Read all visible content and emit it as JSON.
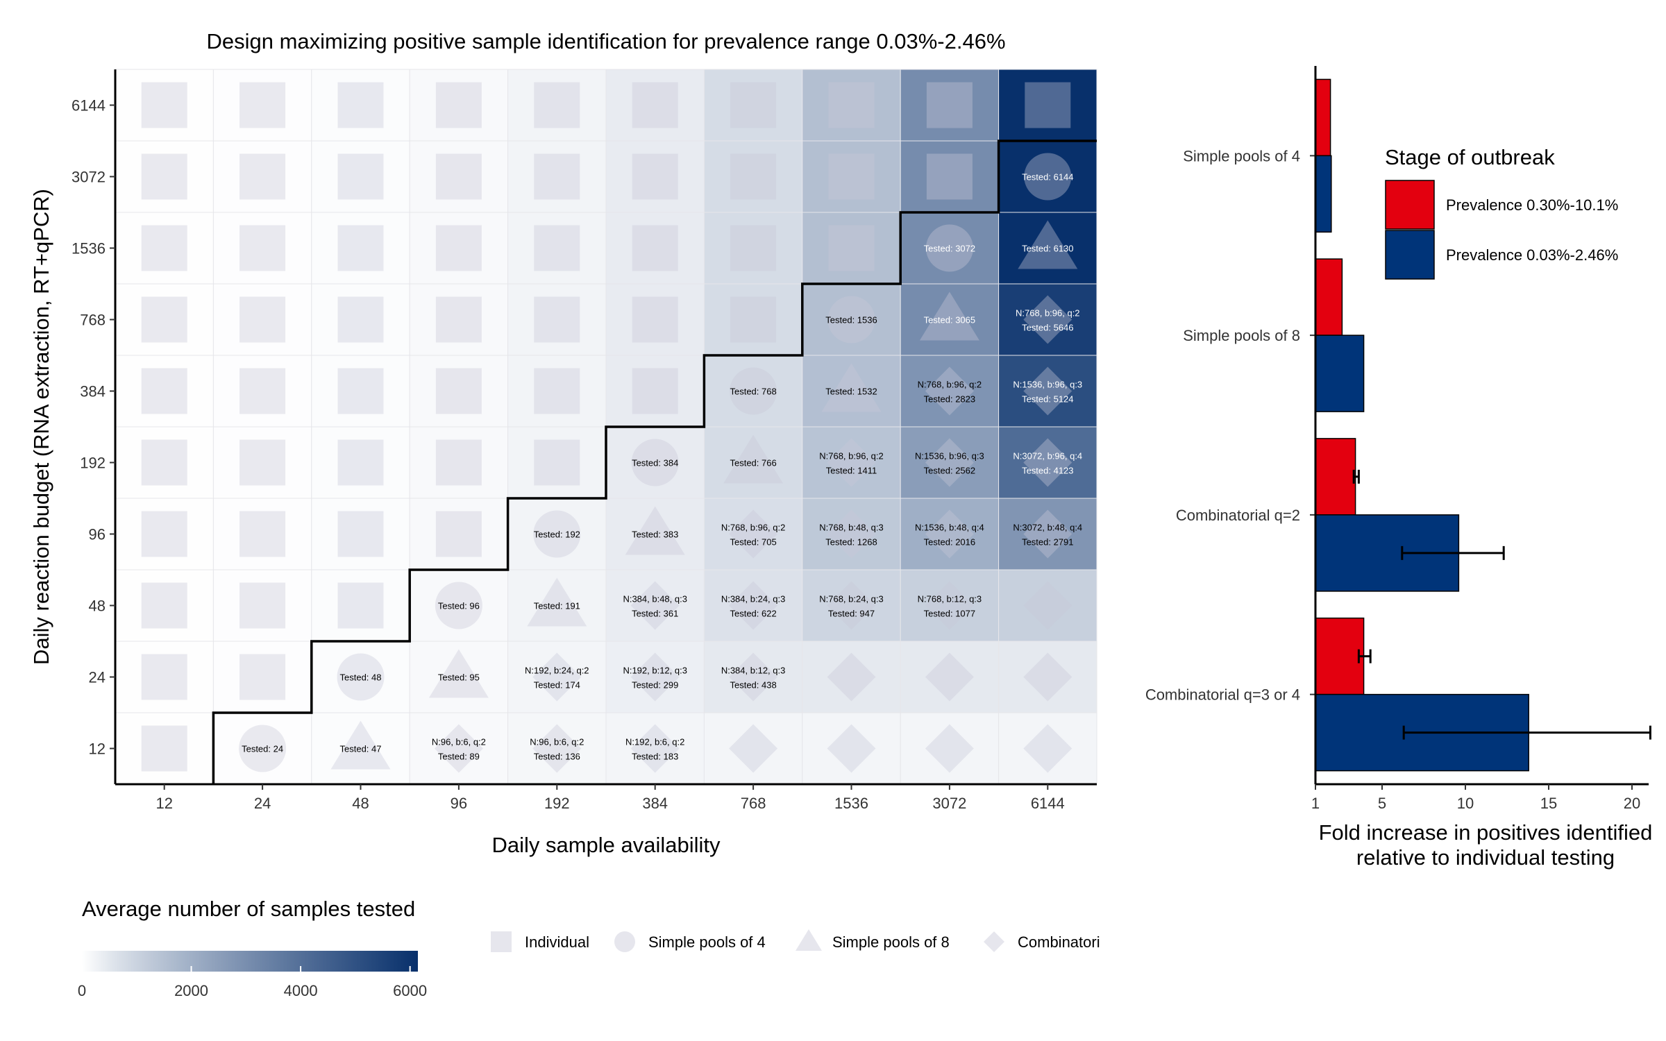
{
  "chart_data": [
    {
      "type": "heatmap",
      "title": "Design maximizing positive sample identification for prevalence range 0.03%-2.46%",
      "xlabel": "Daily sample availability",
      "ylabel": "Daily reaction budget (RNA extraction, RT+qPCR)",
      "x_categories": [
        "12",
        "24",
        "48",
        "96",
        "192",
        "384",
        "768",
        "1536",
        "3072",
        "6144"
      ],
      "y_categories": [
        "12",
        "24",
        "48",
        "96",
        "192",
        "384",
        "768",
        "1536",
        "3072",
        "6144"
      ],
      "color_scale": {
        "title": "Average number of samples tested",
        "min": 0,
        "max": 6144,
        "low_color": "#ffffff",
        "high_color": "#08306b",
        "ticks": [
          "0",
          "2000",
          "4000",
          "6000"
        ]
      },
      "shape_legend": {
        "items": [
          {
            "shape": "square",
            "label": "Individual"
          },
          {
            "shape": "circle",
            "label": "Simple pools of 4"
          },
          {
            "shape": "triangle",
            "label": "Simple pools of 8"
          },
          {
            "shape": "diamond",
            "label": "Combinatori"
          }
        ]
      },
      "cells": [
        {
          "x": "12",
          "y": "12",
          "tested": 12,
          "shape": "square",
          "label": ""
        },
        {
          "x": "24",
          "y": "12",
          "tested": 24,
          "shape": "circle",
          "label": "Tested: 24"
        },
        {
          "x": "48",
          "y": "12",
          "tested": 47,
          "shape": "triangle",
          "label": "Tested: 47"
        },
        {
          "x": "96",
          "y": "12",
          "tested": 89,
          "shape": "diamond",
          "label": "N:96, b:6, q:2\nTested: 89"
        },
        {
          "x": "192",
          "y": "12",
          "tested": 136,
          "shape": "diamond",
          "label": "N:96, b:6, q:2\nTested: 136"
        },
        {
          "x": "384",
          "y": "12",
          "tested": 183,
          "shape": "diamond",
          "label": "N:192, b:6, q:2\nTested: 183"
        },
        {
          "x": "768",
          "y": "12",
          "tested": 183,
          "shape": "diamond",
          "label": ""
        },
        {
          "x": "1536",
          "y": "12",
          "tested": 183,
          "shape": "diamond",
          "label": ""
        },
        {
          "x": "3072",
          "y": "12",
          "tested": 183,
          "shape": "diamond",
          "label": ""
        },
        {
          "x": "6144",
          "y": "12",
          "tested": 183,
          "shape": "diamond",
          "label": ""
        },
        {
          "x": "12",
          "y": "24",
          "tested": 12,
          "shape": "square",
          "label": ""
        },
        {
          "x": "24",
          "y": "24",
          "tested": 24,
          "shape": "square",
          "label": ""
        },
        {
          "x": "48",
          "y": "24",
          "tested": 48,
          "shape": "circle",
          "label": "Tested: 48"
        },
        {
          "x": "96",
          "y": "24",
          "tested": 95,
          "shape": "triangle",
          "label": "Tested: 95"
        },
        {
          "x": "192",
          "y": "24",
          "tested": 174,
          "shape": "diamond",
          "label": "N:192, b:24, q:2\nTested: 174"
        },
        {
          "x": "384",
          "y": "24",
          "tested": 299,
          "shape": "diamond",
          "label": "N:192, b:12, q:3\nTested: 299"
        },
        {
          "x": "768",
          "y": "24",
          "tested": 438,
          "shape": "diamond",
          "label": "N:384, b:12, q:3\nTested: 438"
        },
        {
          "x": "1536",
          "y": "24",
          "tested": 438,
          "shape": "diamond",
          "label": ""
        },
        {
          "x": "3072",
          "y": "24",
          "tested": 438,
          "shape": "diamond",
          "label": ""
        },
        {
          "x": "6144",
          "y": "24",
          "tested": 438,
          "shape": "diamond",
          "label": ""
        },
        {
          "x": "12",
          "y": "48",
          "tested": 12,
          "shape": "square",
          "label": ""
        },
        {
          "x": "24",
          "y": "48",
          "tested": 24,
          "shape": "square",
          "label": ""
        },
        {
          "x": "48",
          "y": "48",
          "tested": 48,
          "shape": "square",
          "label": ""
        },
        {
          "x": "96",
          "y": "48",
          "tested": 96,
          "shape": "circle",
          "label": "Tested: 96"
        },
        {
          "x": "192",
          "y": "48",
          "tested": 191,
          "shape": "triangle",
          "label": "Tested: 191"
        },
        {
          "x": "384",
          "y": "48",
          "tested": 361,
          "shape": "diamond",
          "label": "N:384, b:48, q:3\nTested: 361"
        },
        {
          "x": "768",
          "y": "48",
          "tested": 622,
          "shape": "diamond",
          "label": "N:384, b:24, q:3\nTested: 622"
        },
        {
          "x": "1536",
          "y": "48",
          "tested": 947,
          "shape": "diamond",
          "label": "N:768, b:24, q:3\nTested: 947"
        },
        {
          "x": "3072",
          "y": "48",
          "tested": 1077,
          "shape": "diamond",
          "label": "N:768, b:12, q:3\nTested: 1077"
        },
        {
          "x": "6144",
          "y": "48",
          "tested": 1077,
          "shape": "diamond",
          "label": ""
        },
        {
          "x": "12",
          "y": "96",
          "tested": 12,
          "shape": "square",
          "label": ""
        },
        {
          "x": "24",
          "y": "96",
          "tested": 24,
          "shape": "square",
          "label": ""
        },
        {
          "x": "48",
          "y": "96",
          "tested": 48,
          "shape": "square",
          "label": ""
        },
        {
          "x": "96",
          "y": "96",
          "tested": 96,
          "shape": "square",
          "label": ""
        },
        {
          "x": "192",
          "y": "96",
          "tested": 192,
          "shape": "circle",
          "label": "Tested: 192"
        },
        {
          "x": "384",
          "y": "96",
          "tested": 383,
          "shape": "triangle",
          "label": "Tested: 383"
        },
        {
          "x": "768",
          "y": "96",
          "tested": 705,
          "shape": "diamond",
          "label": "N:768, b:96, q:2\nTested: 705"
        },
        {
          "x": "1536",
          "y": "96",
          "tested": 1268,
          "shape": "diamond",
          "label": "N:768, b:48, q:3\nTested: 1268"
        },
        {
          "x": "3072",
          "y": "96",
          "tested": 2016,
          "shape": "diamond",
          "label": "N:1536, b:48, q:4\nTested: 2016"
        },
        {
          "x": "6144",
          "y": "96",
          "tested": 2791,
          "shape": "diamond",
          "label": "N:3072, b:48, q:4\nTested: 2791"
        },
        {
          "x": "12",
          "y": "192",
          "tested": 12,
          "shape": "square",
          "label": ""
        },
        {
          "x": "24",
          "y": "192",
          "tested": 24,
          "shape": "square",
          "label": ""
        },
        {
          "x": "48",
          "y": "192",
          "tested": 48,
          "shape": "square",
          "label": ""
        },
        {
          "x": "96",
          "y": "192",
          "tested": 96,
          "shape": "square",
          "label": ""
        },
        {
          "x": "192",
          "y": "192",
          "tested": 192,
          "shape": "square",
          "label": ""
        },
        {
          "x": "384",
          "y": "192",
          "tested": 384,
          "shape": "circle",
          "label": "Tested: 384"
        },
        {
          "x": "768",
          "y": "192",
          "tested": 766,
          "shape": "triangle",
          "label": "Tested: 766"
        },
        {
          "x": "1536",
          "y": "192",
          "tested": 1411,
          "shape": "diamond",
          "label": "N:768, b:96, q:2\nTested: 1411"
        },
        {
          "x": "3072",
          "y": "192",
          "tested": 2562,
          "shape": "diamond",
          "label": "N:1536, b:96, q:3\nTested: 2562"
        },
        {
          "x": "6144",
          "y": "192",
          "tested": 4123,
          "shape": "diamond",
          "label": "N:3072, b:96, q:4\nTested: 4123"
        },
        {
          "x": "12",
          "y": "384",
          "tested": 12,
          "shape": "square",
          "label": ""
        },
        {
          "x": "24",
          "y": "384",
          "tested": 24,
          "shape": "square",
          "label": ""
        },
        {
          "x": "48",
          "y": "384",
          "tested": 48,
          "shape": "square",
          "label": ""
        },
        {
          "x": "96",
          "y": "384",
          "tested": 96,
          "shape": "square",
          "label": ""
        },
        {
          "x": "192",
          "y": "384",
          "tested": 192,
          "shape": "square",
          "label": ""
        },
        {
          "x": "384",
          "y": "384",
          "tested": 384,
          "shape": "square",
          "label": ""
        },
        {
          "x": "768",
          "y": "384",
          "tested": 768,
          "shape": "circle",
          "label": "Tested: 768"
        },
        {
          "x": "1536",
          "y": "384",
          "tested": 1532,
          "shape": "triangle",
          "label": "Tested: 1532"
        },
        {
          "x": "3072",
          "y": "384",
          "tested": 2823,
          "shape": "diamond",
          "label": "N:768, b:96, q:2\nTested: 2823"
        },
        {
          "x": "6144",
          "y": "384",
          "tested": 5124,
          "shape": "diamond",
          "label": "N:1536, b:96, q:3\nTested: 5124"
        },
        {
          "x": "12",
          "y": "768",
          "tested": 12,
          "shape": "square",
          "label": ""
        },
        {
          "x": "24",
          "y": "768",
          "tested": 24,
          "shape": "square",
          "label": ""
        },
        {
          "x": "48",
          "y": "768",
          "tested": 48,
          "shape": "square",
          "label": ""
        },
        {
          "x": "96",
          "y": "768",
          "tested": 96,
          "shape": "square",
          "label": ""
        },
        {
          "x": "192",
          "y": "768",
          "tested": 192,
          "shape": "square",
          "label": ""
        },
        {
          "x": "384",
          "y": "768",
          "tested": 384,
          "shape": "square",
          "label": ""
        },
        {
          "x": "768",
          "y": "768",
          "tested": 768,
          "shape": "square",
          "label": ""
        },
        {
          "x": "1536",
          "y": "768",
          "tested": 1536,
          "shape": "circle",
          "label": "Tested: 1536"
        },
        {
          "x": "3072",
          "y": "768",
          "tested": 3065,
          "shape": "triangle",
          "label": "Tested: 3065"
        },
        {
          "x": "6144",
          "y": "768",
          "tested": 5646,
          "shape": "diamond",
          "label": "N:768, b:96, q:2\nTested: 5646"
        },
        {
          "x": "12",
          "y": "1536",
          "tested": 12,
          "shape": "square",
          "label": ""
        },
        {
          "x": "24",
          "y": "1536",
          "tested": 24,
          "shape": "square",
          "label": ""
        },
        {
          "x": "48",
          "y": "1536",
          "tested": 48,
          "shape": "square",
          "label": ""
        },
        {
          "x": "96",
          "y": "1536",
          "tested": 96,
          "shape": "square",
          "label": ""
        },
        {
          "x": "192",
          "y": "1536",
          "tested": 192,
          "shape": "square",
          "label": ""
        },
        {
          "x": "384",
          "y": "1536",
          "tested": 384,
          "shape": "square",
          "label": ""
        },
        {
          "x": "768",
          "y": "1536",
          "tested": 768,
          "shape": "square",
          "label": ""
        },
        {
          "x": "1536",
          "y": "1536",
          "tested": 1536,
          "shape": "square",
          "label": ""
        },
        {
          "x": "3072",
          "y": "1536",
          "tested": 3072,
          "shape": "circle",
          "label": "Tested: 3072"
        },
        {
          "x": "6144",
          "y": "1536",
          "tested": 6130,
          "shape": "triangle",
          "label": "Tested: 6130"
        },
        {
          "x": "12",
          "y": "3072",
          "tested": 12,
          "shape": "square",
          "label": ""
        },
        {
          "x": "24",
          "y": "3072",
          "tested": 24,
          "shape": "square",
          "label": ""
        },
        {
          "x": "48",
          "y": "3072",
          "tested": 48,
          "shape": "square",
          "label": ""
        },
        {
          "x": "96",
          "y": "3072",
          "tested": 96,
          "shape": "square",
          "label": ""
        },
        {
          "x": "192",
          "y": "3072",
          "tested": 192,
          "shape": "square",
          "label": ""
        },
        {
          "x": "384",
          "y": "3072",
          "tested": 384,
          "shape": "square",
          "label": ""
        },
        {
          "x": "768",
          "y": "3072",
          "tested": 768,
          "shape": "square",
          "label": ""
        },
        {
          "x": "1536",
          "y": "3072",
          "tested": 1536,
          "shape": "square",
          "label": ""
        },
        {
          "x": "3072",
          "y": "3072",
          "tested": 3072,
          "shape": "square",
          "label": ""
        },
        {
          "x": "6144",
          "y": "3072",
          "tested": 6144,
          "shape": "circle",
          "label": "Tested: 6144"
        },
        {
          "x": "12",
          "y": "6144",
          "tested": 12,
          "shape": "square",
          "label": ""
        },
        {
          "x": "24",
          "y": "6144",
          "tested": 24,
          "shape": "square",
          "label": ""
        },
        {
          "x": "48",
          "y": "6144",
          "tested": 48,
          "shape": "square",
          "label": ""
        },
        {
          "x": "96",
          "y": "6144",
          "tested": 96,
          "shape": "square",
          "label": ""
        },
        {
          "x": "192",
          "y": "6144",
          "tested": 192,
          "shape": "square",
          "label": ""
        },
        {
          "x": "384",
          "y": "6144",
          "tested": 384,
          "shape": "square",
          "label": ""
        },
        {
          "x": "768",
          "y": "6144",
          "tested": 768,
          "shape": "square",
          "label": ""
        },
        {
          "x": "1536",
          "y": "6144",
          "tested": 1536,
          "shape": "square",
          "label": ""
        },
        {
          "x": "3072",
          "y": "6144",
          "tested": 3072,
          "shape": "square",
          "label": ""
        },
        {
          "x": "6144",
          "y": "6144",
          "tested": 6144,
          "shape": "square",
          "label": ""
        }
      ]
    },
    {
      "type": "bar",
      "orientation": "horizontal",
      "title": "",
      "xlabel": "Fold increase in positives identified\nrelative to individual testing",
      "ylabel": "",
      "categories": [
        "Simple pools of 4",
        "Simple pools of 8",
        "Combinatorial q=2",
        "Combinatorial q=3 or 4"
      ],
      "xlim": [
        1,
        21
      ],
      "xticks": [
        1,
        5,
        10,
        15,
        20
      ],
      "legend": {
        "title": "Stage of outbreak",
        "position": "top-right"
      },
      "series": [
        {
          "name": "Prevalence 0.30%-10.1%",
          "color": "#e3000f",
          "values": [
            1.9,
            2.6,
            3.4,
            3.9
          ],
          "error_low": [
            null,
            null,
            3.3,
            3.6
          ],
          "error_high": [
            null,
            null,
            3.6,
            4.3
          ]
        },
        {
          "name": "Prevalence 0.03%-2.46%",
          "color": "#003479",
          "values": [
            1.95,
            3.9,
            9.6,
            13.8
          ],
          "error_low": [
            null,
            null,
            6.2,
            6.3
          ],
          "error_high": [
            null,
            null,
            12.3,
            21.1
          ]
        }
      ]
    }
  ]
}
